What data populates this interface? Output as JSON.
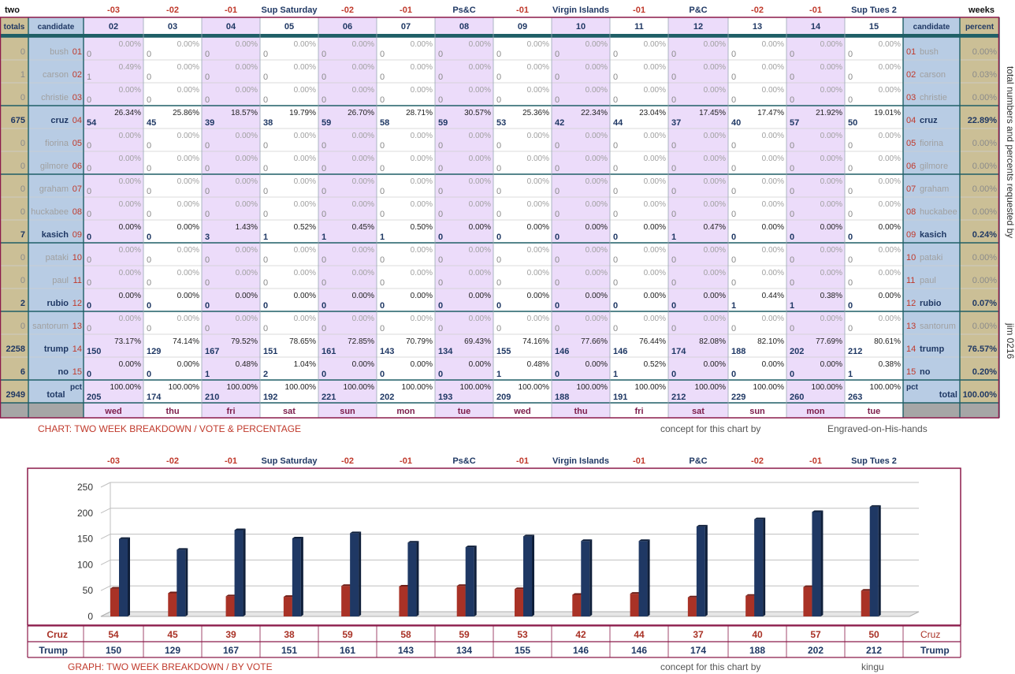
{
  "table": {
    "header_left": "two",
    "header_right": "weeks",
    "totals_label": "totals",
    "candidate_label": "candidate",
    "percent_label": "percent",
    "events": [
      "-03",
      "-02",
      "-01",
      "Sup Saturday",
      "-02",
      "-01",
      "Ps&C",
      "-01",
      "Virgin Islands",
      "-01",
      "P&C",
      "-02",
      "-01",
      "Sup Tues 2"
    ],
    "day_numbers": [
      "02",
      "03",
      "04",
      "05",
      "06",
      "07",
      "08",
      "09",
      "10",
      "11",
      "12",
      "13",
      "14",
      "15"
    ],
    "weekdays": [
      "wed",
      "thu",
      "fri",
      "sat",
      "sun",
      "mon",
      "tue",
      "wed",
      "thu",
      "fri",
      "sat",
      "sun",
      "mon",
      "tue"
    ],
    "candidates": [
      {
        "name": "bush",
        "num": "01",
        "total": "0",
        "counts": [
          "0",
          "0",
          "0",
          "0",
          "0",
          "0",
          "0",
          "0",
          "0",
          "0",
          "0",
          "0",
          "0",
          "0"
        ],
        "pcts": [
          "0.00%",
          "0.00%",
          "0.00%",
          "0.00%",
          "0.00%",
          "0.00%",
          "0.00%",
          "0.00%",
          "0.00%",
          "0.00%",
          "0.00%",
          "0.00%",
          "0.00%",
          "0.00%"
        ],
        "overall": "0.00%",
        "active": false
      },
      {
        "name": "carson",
        "num": "02",
        "total": "1",
        "counts": [
          "1",
          "0",
          "0",
          "0",
          "0",
          "0",
          "0",
          "0",
          "0",
          "0",
          "0",
          "0",
          "0",
          "0"
        ],
        "pcts": [
          "0.49%",
          "0.00%",
          "0.00%",
          "0.00%",
          "0.00%",
          "0.00%",
          "0.00%",
          "0.00%",
          "0.00%",
          "0.00%",
          "0.00%",
          "0.00%",
          "0.00%",
          "0.00%"
        ],
        "overall": "0.03%",
        "active": false
      },
      {
        "name": "christie",
        "num": "03",
        "total": "0",
        "counts": [
          "0",
          "0",
          "0",
          "0",
          "0",
          "0",
          "0",
          "0",
          "0",
          "0",
          "0",
          "0",
          "0",
          "0"
        ],
        "pcts": [
          "0.00%",
          "0.00%",
          "0.00%",
          "0.00%",
          "0.00%",
          "0.00%",
          "0.00%",
          "0.00%",
          "0.00%",
          "0.00%",
          "0.00%",
          "0.00%",
          "0.00%",
          "0.00%"
        ],
        "overall": "0.00%",
        "active": false
      },
      {
        "name": "cruz",
        "num": "04",
        "total": "675",
        "counts": [
          "54",
          "45",
          "39",
          "38",
          "59",
          "58",
          "59",
          "53",
          "42",
          "44",
          "37",
          "40",
          "57",
          "50"
        ],
        "pcts": [
          "26.34%",
          "25.86%",
          "18.57%",
          "19.79%",
          "26.70%",
          "28.71%",
          "30.57%",
          "25.36%",
          "22.34%",
          "23.04%",
          "17.45%",
          "17.47%",
          "21.92%",
          "19.01%"
        ],
        "overall": "22.89%",
        "active": true
      },
      {
        "name": "fiorina",
        "num": "05",
        "total": "0",
        "counts": [
          "0",
          "0",
          "0",
          "0",
          "0",
          "0",
          "0",
          "0",
          "0",
          "0",
          "0",
          "0",
          "0",
          "0"
        ],
        "pcts": [
          "0.00%",
          "0.00%",
          "0.00%",
          "0.00%",
          "0.00%",
          "0.00%",
          "0.00%",
          "0.00%",
          "0.00%",
          "0.00%",
          "0.00%",
          "0.00%",
          "0.00%",
          "0.00%"
        ],
        "overall": "0.00%",
        "active": false
      },
      {
        "name": "gilmore",
        "num": "06",
        "total": "0",
        "counts": [
          "0",
          "0",
          "0",
          "0",
          "0",
          "0",
          "0",
          "0",
          "0",
          "0",
          "0",
          "0",
          "0",
          "0"
        ],
        "pcts": [
          "0.00%",
          "0.00%",
          "0.00%",
          "0.00%",
          "0.00%",
          "0.00%",
          "0.00%",
          "0.00%",
          "0.00%",
          "0.00%",
          "0.00%",
          "0.00%",
          "0.00%",
          "0.00%"
        ],
        "overall": "0.00%",
        "active": false
      },
      {
        "name": "graham",
        "num": "07",
        "total": "0",
        "counts": [
          "0",
          "0",
          "0",
          "0",
          "0",
          "0",
          "0",
          "0",
          "0",
          "0",
          "0",
          "0",
          "0",
          "0"
        ],
        "pcts": [
          "0.00%",
          "0.00%",
          "0.00%",
          "0.00%",
          "0.00%",
          "0.00%",
          "0.00%",
          "0.00%",
          "0.00%",
          "0.00%",
          "0.00%",
          "0.00%",
          "0.00%",
          "0.00%"
        ],
        "overall": "0.00%",
        "active": false
      },
      {
        "name": "huckabee",
        "num": "08",
        "total": "0",
        "counts": [
          "0",
          "0",
          "0",
          "0",
          "0",
          "0",
          "0",
          "0",
          "0",
          "0",
          "0",
          "0",
          "0",
          "0"
        ],
        "pcts": [
          "0.00%",
          "0.00%",
          "0.00%",
          "0.00%",
          "0.00%",
          "0.00%",
          "0.00%",
          "0.00%",
          "0.00%",
          "0.00%",
          "0.00%",
          "0.00%",
          "0.00%",
          "0.00%"
        ],
        "overall": "0.00%",
        "active": false
      },
      {
        "name": "kasich",
        "num": "09",
        "total": "7",
        "counts": [
          "0",
          "0",
          "3",
          "1",
          "1",
          "1",
          "0",
          "0",
          "0",
          "0",
          "1",
          "0",
          "0",
          "0"
        ],
        "pcts": [
          "0.00%",
          "0.00%",
          "1.43%",
          "0.52%",
          "0.45%",
          "0.50%",
          "0.00%",
          "0.00%",
          "0.00%",
          "0.00%",
          "0.47%",
          "0.00%",
          "0.00%",
          "0.00%"
        ],
        "overall": "0.24%",
        "active": true
      },
      {
        "name": "pataki",
        "num": "10",
        "total": "0",
        "counts": [
          "0",
          "0",
          "0",
          "0",
          "0",
          "0",
          "0",
          "0",
          "0",
          "0",
          "0",
          "0",
          "0",
          "0"
        ],
        "pcts": [
          "0.00%",
          "0.00%",
          "0.00%",
          "0.00%",
          "0.00%",
          "0.00%",
          "0.00%",
          "0.00%",
          "0.00%",
          "0.00%",
          "0.00%",
          "0.00%",
          "0.00%",
          "0.00%"
        ],
        "overall": "0.00%",
        "active": false
      },
      {
        "name": "paul",
        "num": "11",
        "total": "0",
        "counts": [
          "0",
          "0",
          "0",
          "0",
          "0",
          "0",
          "0",
          "0",
          "0",
          "0",
          "0",
          "0",
          "0",
          "0"
        ],
        "pcts": [
          "0.00%",
          "0.00%",
          "0.00%",
          "0.00%",
          "0.00%",
          "0.00%",
          "0.00%",
          "0.00%",
          "0.00%",
          "0.00%",
          "0.00%",
          "0.00%",
          "0.00%",
          "0.00%"
        ],
        "overall": "0.00%",
        "active": false
      },
      {
        "name": "rubio",
        "num": "12",
        "total": "2",
        "counts": [
          "0",
          "0",
          "0",
          "0",
          "0",
          "0",
          "0",
          "0",
          "0",
          "0",
          "0",
          "1",
          "1",
          "0"
        ],
        "pcts": [
          "0.00%",
          "0.00%",
          "0.00%",
          "0.00%",
          "0.00%",
          "0.00%",
          "0.00%",
          "0.00%",
          "0.00%",
          "0.00%",
          "0.00%",
          "0.44%",
          "0.38%",
          "0.00%"
        ],
        "overall": "0.07%",
        "active": true
      },
      {
        "name": "santorum",
        "num": "13",
        "total": "0",
        "counts": [
          "0",
          "0",
          "0",
          "0",
          "0",
          "0",
          "0",
          "0",
          "0",
          "0",
          "0",
          "0",
          "0",
          "0"
        ],
        "pcts": [
          "0.00%",
          "0.00%",
          "0.00%",
          "0.00%",
          "0.00%",
          "0.00%",
          "0.00%",
          "0.00%",
          "0.00%",
          "0.00%",
          "0.00%",
          "0.00%",
          "0.00%",
          "0.00%"
        ],
        "overall": "0.00%",
        "active": false
      },
      {
        "name": "trump",
        "num": "14",
        "total": "2258",
        "counts": [
          "150",
          "129",
          "167",
          "151",
          "161",
          "143",
          "134",
          "155",
          "146",
          "146",
          "174",
          "188",
          "202",
          "212"
        ],
        "pcts": [
          "73.17%",
          "74.14%",
          "79.52%",
          "78.65%",
          "72.85%",
          "70.79%",
          "69.43%",
          "74.16%",
          "77.66%",
          "76.44%",
          "82.08%",
          "82.10%",
          "77.69%",
          "80.61%"
        ],
        "overall": "76.57%",
        "active": true
      },
      {
        "name": "no",
        "num": "15",
        "total": "6",
        "counts": [
          "0",
          "0",
          "1",
          "2",
          "0",
          "0",
          "0",
          "1",
          "0",
          "1",
          "0",
          "0",
          "0",
          "1"
        ],
        "pcts": [
          "0.00%",
          "0.00%",
          "0.48%",
          "1.04%",
          "0.00%",
          "0.00%",
          "0.00%",
          "0.48%",
          "0.00%",
          "0.52%",
          "0.00%",
          "0.00%",
          "0.00%",
          "0.38%"
        ],
        "overall": "0.20%",
        "active": true
      }
    ],
    "total_row": {
      "grand_total": "2949",
      "label": "total",
      "pct_label": "pct",
      "counts": [
        "205",
        "174",
        "210",
        "192",
        "221",
        "202",
        "193",
        "209",
        "188",
        "191",
        "212",
        "229",
        "260",
        "263"
      ],
      "pct": "100.00%",
      "overall": "100.00%"
    },
    "side_note": "total numbers and percents requested by",
    "side_note2": "jim 0216",
    "caption": "CHART: TWO WEEK BREAKDOWN / VOTE & PERCENTAGE",
    "credit_label": "concept for this chart by",
    "credit_name": "Engraved-on-His-hands"
  },
  "graph": {
    "caption": "GRAPH: TWO WEEK BREAKDOWN / BY VOTE",
    "credit_label": "concept for this chart by",
    "credit_name": "kingu",
    "colors": {
      "cruz": "#a93226",
      "trump": "#1f3864"
    }
  },
  "chart_data": {
    "type": "bar",
    "title": "",
    "xlabel": "",
    "ylabel": "",
    "categories": [
      "-03",
      "-02",
      "-01",
      "Sup Saturday",
      "-02",
      "-01",
      "Ps&C",
      "-01",
      "Virgin Islands",
      "-01",
      "P&C",
      "-02",
      "-01",
      "Sup Tues 2"
    ],
    "series": [
      {
        "name": "Cruz",
        "values": [
          54,
          45,
          39,
          38,
          59,
          58,
          59,
          53,
          42,
          44,
          37,
          40,
          57,
          50
        ]
      },
      {
        "name": "Trump",
        "values": [
          150,
          129,
          167,
          151,
          161,
          143,
          134,
          155,
          146,
          146,
          174,
          188,
          202,
          212
        ]
      }
    ],
    "ylim": [
      0,
      250
    ],
    "yticks": [
      0,
      50,
      100,
      150,
      200,
      250
    ],
    "grid": true
  }
}
